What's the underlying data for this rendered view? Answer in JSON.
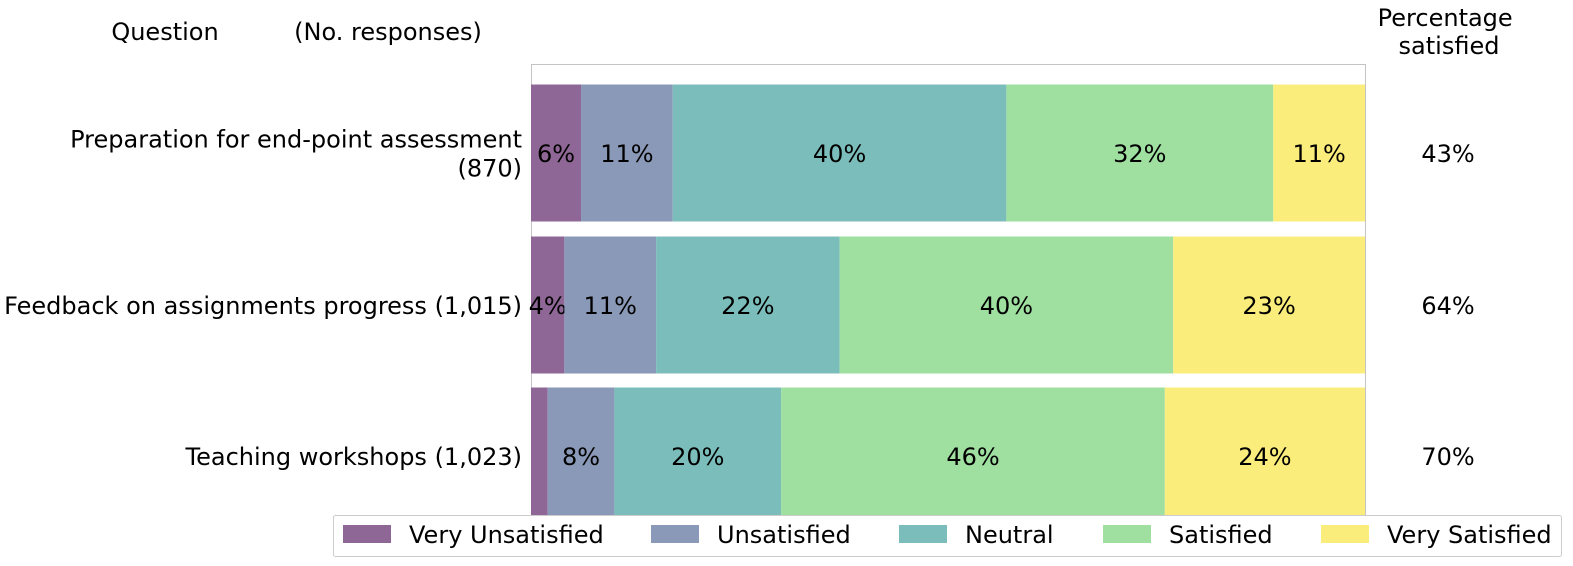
{
  "chart_data": {
    "type": "bar",
    "orientation": "horizontal",
    "stacked": true,
    "normalized": true,
    "header": {
      "question": "Question",
      "responses": "(No. responses)",
      "percentage_satisfied": [
        "Percentage",
        "satisfied"
      ]
    },
    "categories": [
      [
        "Preparation for end-point assessment",
        "(870)"
      ],
      [
        "Feedback on assignments progress (1,015)"
      ],
      [
        "Teaching workshops (1,023)"
      ]
    ],
    "xlim": [
      0,
      100
    ],
    "series": [
      {
        "name": "Very Unsatisfied",
        "color": "#8f6796",
        "values": [
          6,
          4,
          2
        ],
        "labels": [
          "6%",
          "4%",
          ""
        ]
      },
      {
        "name": "Unsatisfied",
        "color": "#8a99b7",
        "values": [
          11,
          11,
          8
        ],
        "labels": [
          "11%",
          "11%",
          "8%"
        ]
      },
      {
        "name": "Neutral",
        "color": "#7bbdba",
        "values": [
          40,
          22,
          20
        ],
        "labels": [
          "40%",
          "22%",
          "20%"
        ]
      },
      {
        "name": "Satisfied",
        "color": "#9fdfa0",
        "values": [
          32,
          40,
          46
        ],
        "labels": [
          "32%",
          "40%",
          "46%"
        ]
      },
      {
        "name": "Very Satisfied",
        "color": "#fbed7c",
        "values": [
          11,
          23,
          24
        ],
        "labels": [
          "11%",
          "23%",
          "24%"
        ]
      }
    ],
    "percentage_satisfied": [
      "43%",
      "64%",
      "70%"
    ],
    "legend_position": "bottom"
  }
}
